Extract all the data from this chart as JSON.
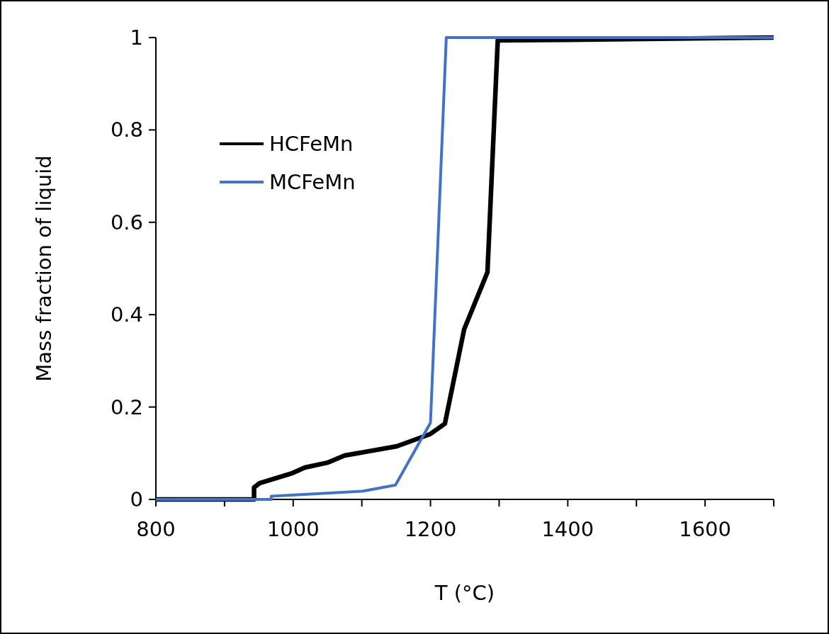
{
  "chart_data": {
    "type": "line",
    "xlabel": "T (°C)",
    "ylabel": "Mass fraction of liquid",
    "xlim": [
      800,
      1700
    ],
    "xticks": [
      800,
      {
        "value": 900,
        "label": null
      },
      1000,
      {
        "value": 1100,
        "label": null
      },
      1200,
      {
        "value": 1300,
        "label": null
      },
      1400,
      {
        "value": 1500,
        "label": null
      },
      1600,
      {
        "value": 1700,
        "label": null
      }
    ],
    "ylim": [
      0,
      1
    ],
    "yticks": [
      0,
      0.2,
      0.4,
      0.6,
      0.8,
      1
    ],
    "grid": false,
    "legend": "top left",
    "marker": "none",
    "line_style": "solid",
    "series": [
      {
        "name": "HCFeMn",
        "color": "#000000",
        "x": [
          800,
          943,
          943,
          951,
          999,
          1017,
          1051,
          1075,
          1151,
          1199,
          1221,
          1249,
          1283,
          1298,
          1400,
          1700
        ],
        "values": [
          0,
          0,
          0.026,
          0.035,
          0.057,
          0.069,
          0.08,
          0.095,
          0.115,
          0.141,
          0.164,
          0.368,
          0.492,
          0.994,
          0.995,
          1
        ]
      },
      {
        "name": "MCFeMn",
        "color": "#4472c4",
        "x": [
          800,
          968,
          968,
          1102,
          1149,
          1200,
          1223,
          1700
        ],
        "values": [
          0,
          0,
          0.007,
          0.018,
          0.031,
          0.166,
          1,
          1
        ]
      }
    ]
  }
}
